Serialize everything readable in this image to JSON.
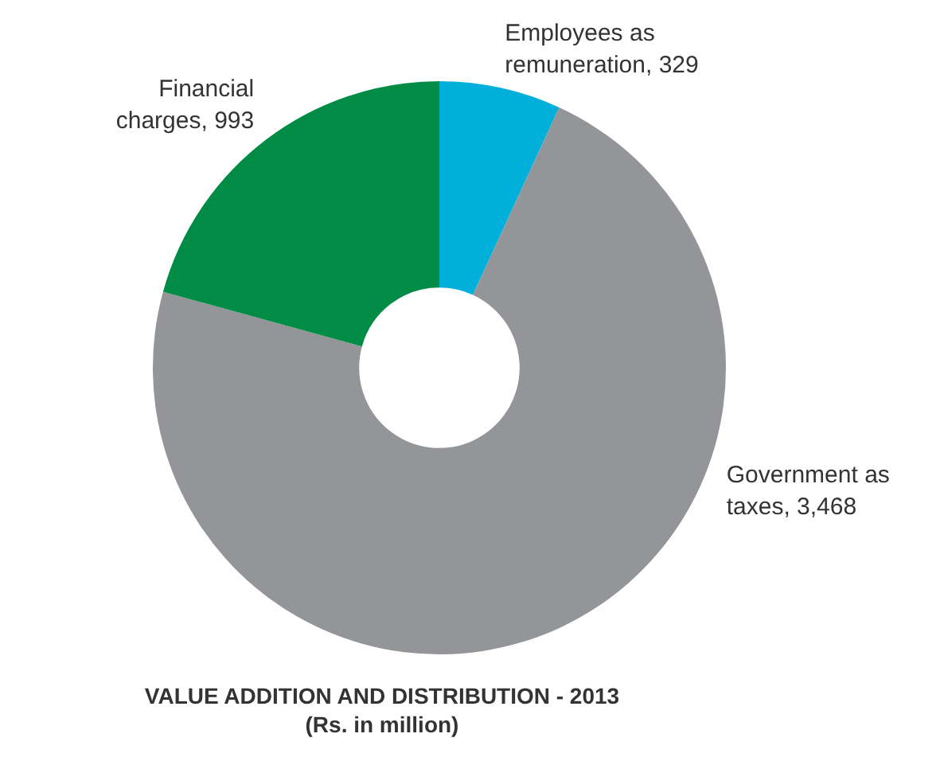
{
  "chart_data": {
    "type": "donut",
    "title": "VALUE ADDITION AND DISTRIBUTION - 2013",
    "subtitle": "(Rs. in million)",
    "categories": [
      "Employees as remuneration",
      "Government as taxes",
      "Financial charges"
    ],
    "values": [
      329,
      3468,
      993
    ],
    "colors": [
      "#00b0db",
      "#939598",
      "#008c44"
    ],
    "value_labels": [
      "329",
      "3,468",
      "993"
    ]
  }
}
